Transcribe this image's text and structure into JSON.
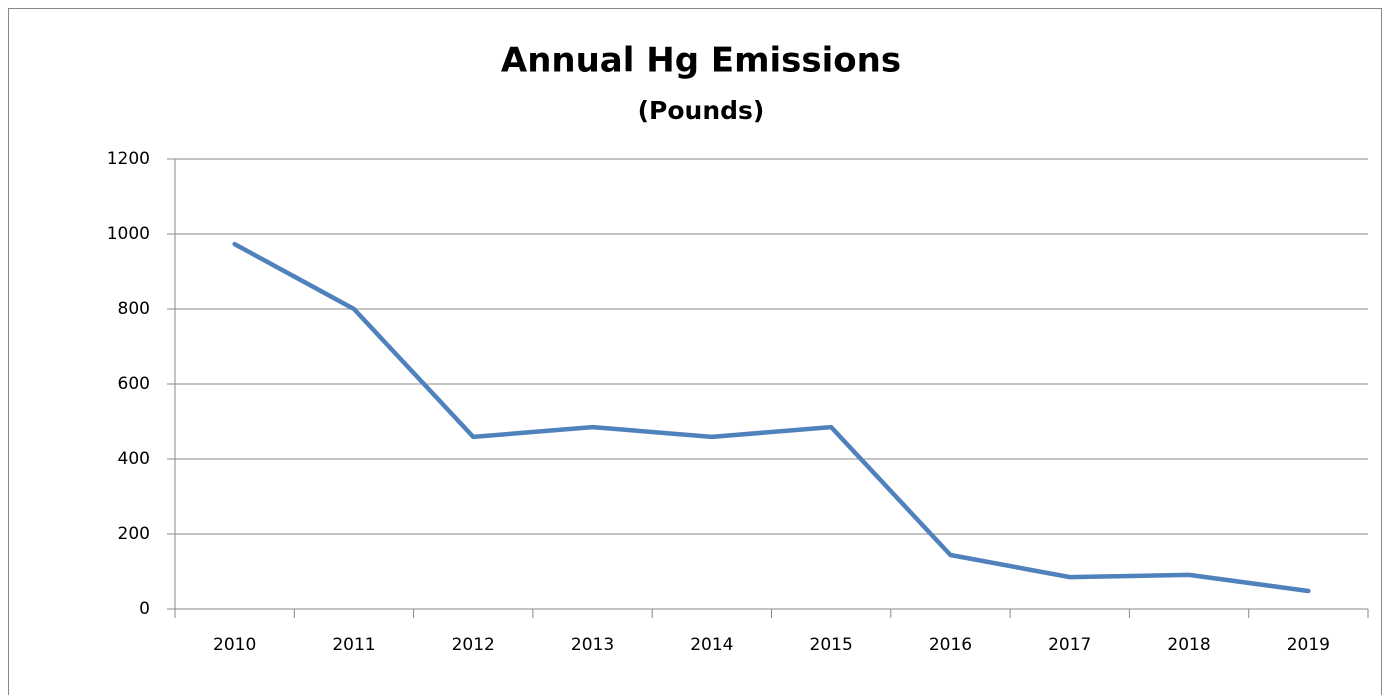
{
  "chart_data": {
    "type": "line",
    "title": "Annual Hg Emissions",
    "subtitle": "(Pounds)",
    "categories": [
      "2010",
      "2011",
      "2012",
      "2013",
      "2014",
      "2015",
      "2016",
      "2017",
      "2018",
      "2019"
    ],
    "series": [
      {
        "name": "Hg Emissions",
        "color": "#4f81bd",
        "values": [
          973,
          800,
          459,
          485,
          459,
          485,
          144,
          85,
          91,
          48
        ]
      }
    ],
    "ylim": [
      0,
      1200
    ],
    "yticks": [
      0,
      200,
      400,
      600,
      800,
      1000,
      1200
    ],
    "grid": true
  }
}
